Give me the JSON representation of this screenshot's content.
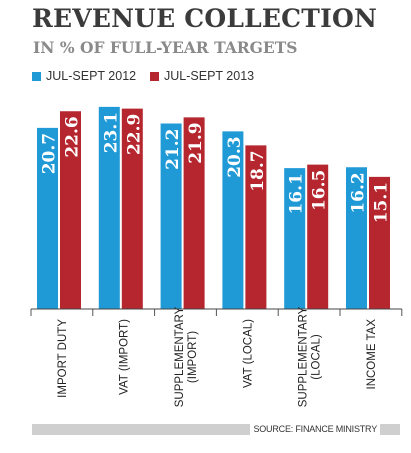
{
  "chart_data": {
    "type": "bar",
    "title": "REVENUE COLLECTION",
    "subtitle": "IN % OF FULL-YEAR TARGETS",
    "categories": [
      "IMPORT DUTY",
      "VAT (IMPORT)",
      "SUPPLEMENTARY (IMPORT)",
      "VAT (LOCAL)",
      "SUPPLEMENTARY (LOCAL)",
      "INCOME TAX"
    ],
    "category_lines": [
      [
        "IMPORT DUTY"
      ],
      [
        "VAT (IMPORT)"
      ],
      [
        "SUPPLEMENTARY",
        "(IMPORT)"
      ],
      [
        "VAT (LOCAL)"
      ],
      [
        "SUPPLEMENTARY",
        "(LOCAL)"
      ],
      [
        "INCOME TAX"
      ]
    ],
    "series": [
      {
        "name": "JUL-SEPT 2012",
        "color": "#1f9ad6",
        "values": [
          20.7,
          23.1,
          21.2,
          20.3,
          16.1,
          16.2
        ]
      },
      {
        "name": "JUL-SEPT 2013",
        "color": "#b5262f",
        "values": [
          22.6,
          22.9,
          21.9,
          18.7,
          16.5,
          15.1
        ]
      }
    ],
    "data_labels": true,
    "legend_position": "top-left",
    "grid": false,
    "source": "SOURCE: FINANCE MINISTRY"
  }
}
